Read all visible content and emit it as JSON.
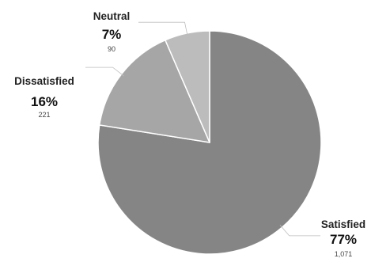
{
  "chart_data": {
    "type": "pie",
    "slices": [
      {
        "label": "Satisfied",
        "percent": "77%",
        "count": "1,071",
        "value": 1071,
        "color": "#858585"
      },
      {
        "label": "Dissatisfied",
        "percent": "16%",
        "count": "221",
        "value": 221,
        "color": "#a6a6a6"
      },
      {
        "label": "Neutral",
        "percent": "7%",
        "count": "90",
        "value": 90,
        "color": "#bcbcbc"
      }
    ],
    "start_angle": "12 o'clock",
    "direction": "clockwise",
    "slice_border_color": "#ffffff",
    "leader_line_color": "#bdbdbd",
    "legend": "none"
  }
}
